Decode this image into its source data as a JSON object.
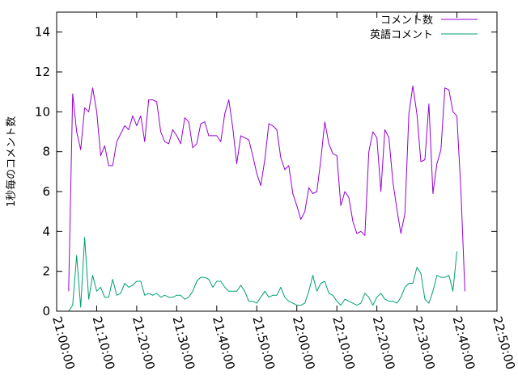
{
  "chart_data": {
    "type": "line",
    "ylabel": "1秒毎のコメント数",
    "ylim": [
      0,
      15
    ],
    "yticks": [
      0,
      2,
      4,
      6,
      8,
      10,
      12,
      14
    ],
    "xlim": [
      "21:00:00",
      "22:50:00"
    ],
    "xticks": [
      "21:00:00",
      "21:10:00",
      "21:20:00",
      "21:30:00",
      "21:40:00",
      "21:50:00",
      "22:00:00",
      "22:10:00",
      "22:20:00",
      "22:30:00",
      "22:40:00",
      "22:50:00"
    ],
    "legend_position": "top-right",
    "grid": false,
    "series": [
      {
        "name": "コメント数",
        "color": "#9400d3",
        "points": [
          [
            "21:03:00",
            1.0
          ],
          [
            "21:04:00",
            10.9
          ],
          [
            "21:05:00",
            9.0
          ],
          [
            "21:06:00",
            8.1
          ],
          [
            "21:07:00",
            10.2
          ],
          [
            "21:08:00",
            10.0
          ],
          [
            "21:09:00",
            11.2
          ],
          [
            "21:10:00",
            10.0
          ],
          [
            "21:11:00",
            7.8
          ],
          [
            "21:12:00",
            8.3
          ],
          [
            "21:13:00",
            7.3
          ],
          [
            "21:14:00",
            7.3
          ],
          [
            "21:15:00",
            8.5
          ],
          [
            "21:16:00",
            8.9
          ],
          [
            "21:17:00",
            9.3
          ],
          [
            "21:18:00",
            9.1
          ],
          [
            "21:19:00",
            9.8
          ],
          [
            "21:20:00",
            9.3
          ],
          [
            "21:21:00",
            9.8
          ],
          [
            "21:22:00",
            8.5
          ],
          [
            "21:23:00",
            10.6
          ],
          [
            "21:24:00",
            10.6
          ],
          [
            "21:25:00",
            10.5
          ],
          [
            "21:26:00",
            9.0
          ],
          [
            "21:27:00",
            8.5
          ],
          [
            "21:28:00",
            8.4
          ],
          [
            "21:29:00",
            9.1
          ],
          [
            "21:30:00",
            8.8
          ],
          [
            "21:31:00",
            8.4
          ],
          [
            "21:32:00",
            9.7
          ],
          [
            "21:33:00",
            9.5
          ],
          [
            "21:34:00",
            8.2
          ],
          [
            "21:35:00",
            8.4
          ],
          [
            "21:36:00",
            9.4
          ],
          [
            "21:37:00",
            9.5
          ],
          [
            "21:38:00",
            8.8
          ],
          [
            "21:39:00",
            8.8
          ],
          [
            "21:40:00",
            8.8
          ],
          [
            "21:41:00",
            8.5
          ],
          [
            "21:42:00",
            9.9
          ],
          [
            "21:43:00",
            10.6
          ],
          [
            "21:44:00",
            9.2
          ],
          [
            "21:45:00",
            7.4
          ],
          [
            "21:46:00",
            8.8
          ],
          [
            "21:47:00",
            8.7
          ],
          [
            "21:48:00",
            8.6
          ],
          [
            "21:49:00",
            7.8
          ],
          [
            "21:50:00",
            6.9
          ],
          [
            "21:51:00",
            6.3
          ],
          [
            "21:52:00",
            7.6
          ],
          [
            "21:53:00",
            9.4
          ],
          [
            "21:54:00",
            9.3
          ],
          [
            "21:55:00",
            9.1
          ],
          [
            "21:56:00",
            7.7
          ],
          [
            "21:57:00",
            7.1
          ],
          [
            "21:58:00",
            7.3
          ],
          [
            "21:59:00",
            5.9
          ],
          [
            "22:00:00",
            5.3
          ],
          [
            "22:01:00",
            4.6
          ],
          [
            "22:02:00",
            5.0
          ],
          [
            "22:03:00",
            6.2
          ],
          [
            "22:04:00",
            5.9
          ],
          [
            "22:05:00",
            6.0
          ],
          [
            "22:06:00",
            7.6
          ],
          [
            "22:07:00",
            9.5
          ],
          [
            "22:08:00",
            8.4
          ],
          [
            "22:09:00",
            7.9
          ],
          [
            "22:10:00",
            7.8
          ],
          [
            "22:11:00",
            5.3
          ],
          [
            "22:12:00",
            6.0
          ],
          [
            "22:13:00",
            5.7
          ],
          [
            "22:14:00",
            4.5
          ],
          [
            "22:15:00",
            3.9
          ],
          [
            "22:16:00",
            4.0
          ],
          [
            "22:17:00",
            3.8
          ],
          [
            "22:18:00",
            8.0
          ],
          [
            "22:19:00",
            9.0
          ],
          [
            "22:20:00",
            8.7
          ],
          [
            "22:21:00",
            6.0
          ],
          [
            "22:22:00",
            9.1
          ],
          [
            "22:23:00",
            8.7
          ],
          [
            "22:24:00",
            6.5
          ],
          [
            "22:25:00",
            5.1
          ],
          [
            "22:26:00",
            3.9
          ],
          [
            "22:27:00",
            4.9
          ],
          [
            "22:28:00",
            9.9
          ],
          [
            "22:29:00",
            11.3
          ],
          [
            "22:30:00",
            9.9
          ],
          [
            "22:31:00",
            7.5
          ],
          [
            "22:32:00",
            7.6
          ],
          [
            "22:33:00",
            10.4
          ],
          [
            "22:34:00",
            5.9
          ],
          [
            "22:35:00",
            7.4
          ],
          [
            "22:36:00",
            8.1
          ],
          [
            "22:37:00",
            11.2
          ],
          [
            "22:38:00",
            11.1
          ],
          [
            "22:39:00",
            10.0
          ],
          [
            "22:40:00",
            9.8
          ],
          [
            "22:41:00",
            6.0
          ],
          [
            "22:42:00",
            1.0
          ]
        ]
      },
      {
        "name": "英語コメント",
        "color": "#009e73",
        "points": [
          [
            "21:03:00",
            0.0
          ],
          [
            "21:04:00",
            0.3
          ],
          [
            "21:05:00",
            2.8
          ],
          [
            "21:06:00",
            0.2
          ],
          [
            "21:07:00",
            3.7
          ],
          [
            "21:08:00",
            0.6
          ],
          [
            "21:09:00",
            1.8
          ],
          [
            "21:10:00",
            1.0
          ],
          [
            "21:11:00",
            1.2
          ],
          [
            "21:12:00",
            0.7
          ],
          [
            "21:13:00",
            0.7
          ],
          [
            "21:14:00",
            1.6
          ],
          [
            "21:15:00",
            0.8
          ],
          [
            "21:16:00",
            0.9
          ],
          [
            "21:17:00",
            1.4
          ],
          [
            "21:18:00",
            1.2
          ],
          [
            "21:19:00",
            1.3
          ],
          [
            "21:20:00",
            1.5
          ],
          [
            "21:21:00",
            1.5
          ],
          [
            "21:22:00",
            0.8
          ],
          [
            "21:23:00",
            0.9
          ],
          [
            "21:24:00",
            0.8
          ],
          [
            "21:25:00",
            0.9
          ],
          [
            "21:26:00",
            0.7
          ],
          [
            "21:27:00",
            0.8
          ],
          [
            "21:28:00",
            0.7
          ],
          [
            "21:29:00",
            0.7
          ],
          [
            "21:30:00",
            0.8
          ],
          [
            "21:31:00",
            0.8
          ],
          [
            "21:32:00",
            0.6
          ],
          [
            "21:33:00",
            0.7
          ],
          [
            "21:34:00",
            1.0
          ],
          [
            "21:35:00",
            1.5
          ],
          [
            "21:36:00",
            1.7
          ],
          [
            "21:37:00",
            1.7
          ],
          [
            "21:38:00",
            1.6
          ],
          [
            "21:39:00",
            1.2
          ],
          [
            "21:40:00",
            1.5
          ],
          [
            "21:41:00",
            1.5
          ],
          [
            "21:42:00",
            1.2
          ],
          [
            "21:43:00",
            1.0
          ],
          [
            "21:44:00",
            1.0
          ],
          [
            "21:45:00",
            1.0
          ],
          [
            "21:46:00",
            1.3
          ],
          [
            "21:47:00",
            1.0
          ],
          [
            "21:48:00",
            0.5
          ],
          [
            "21:49:00",
            0.5
          ],
          [
            "21:50:00",
            0.4
          ],
          [
            "21:51:00",
            0.7
          ],
          [
            "21:52:00",
            1.0
          ],
          [
            "21:53:00",
            0.7
          ],
          [
            "21:54:00",
            0.8
          ],
          [
            "21:55:00",
            0.8
          ],
          [
            "21:56:00",
            1.2
          ],
          [
            "21:57:00",
            0.7
          ],
          [
            "21:58:00",
            0.5
          ],
          [
            "21:59:00",
            0.4
          ],
          [
            "22:00:00",
            0.3
          ],
          [
            "22:01:00",
            0.3
          ],
          [
            "22:02:00",
            0.4
          ],
          [
            "22:03:00",
            1.0
          ],
          [
            "22:04:00",
            1.8
          ],
          [
            "22:05:00",
            1.0
          ],
          [
            "22:06:00",
            1.4
          ],
          [
            "22:07:00",
            1.5
          ],
          [
            "22:08:00",
            0.9
          ],
          [
            "22:09:00",
            0.8
          ],
          [
            "22:10:00",
            0.5
          ],
          [
            "22:11:00",
            0.3
          ],
          [
            "22:12:00",
            0.6
          ],
          [
            "22:13:00",
            0.5
          ],
          [
            "22:14:00",
            0.4
          ],
          [
            "22:15:00",
            0.3
          ],
          [
            "22:16:00",
            0.4
          ],
          [
            "22:17:00",
            0.9
          ],
          [
            "22:18:00",
            0.7
          ],
          [
            "22:19:00",
            0.3
          ],
          [
            "22:20:00",
            0.7
          ],
          [
            "22:21:00",
            0.9
          ],
          [
            "22:22:00",
            0.6
          ],
          [
            "22:23:00",
            0.5
          ],
          [
            "22:24:00",
            0.5
          ],
          [
            "22:25:00",
            0.4
          ],
          [
            "22:26:00",
            0.7
          ],
          [
            "22:27:00",
            1.2
          ],
          [
            "22:28:00",
            1.4
          ],
          [
            "22:29:00",
            1.4
          ],
          [
            "22:30:00",
            2.2
          ],
          [
            "22:31:00",
            1.9
          ],
          [
            "22:32:00",
            0.6
          ],
          [
            "22:33:00",
            0.4
          ],
          [
            "22:34:00",
            1.0
          ],
          [
            "22:35:00",
            1.8
          ],
          [
            "22:36:00",
            1.7
          ],
          [
            "22:37:00",
            1.7
          ],
          [
            "22:38:00",
            1.8
          ],
          [
            "22:39:00",
            1.0
          ],
          [
            "22:40:00",
            3.0
          ]
        ]
      }
    ]
  }
}
